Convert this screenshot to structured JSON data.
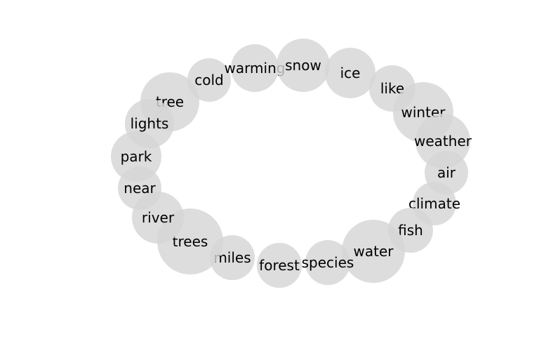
{
  "nodes": [
    {
      "id": "tree",
      "label": "tree"
    },
    {
      "id": "cold",
      "label": "cold"
    },
    {
      "id": "warming",
      "label": "warming"
    },
    {
      "id": "snow",
      "label": "snow"
    },
    {
      "id": "ice",
      "label": "ice"
    },
    {
      "id": "like",
      "label": "like"
    },
    {
      "id": "winter",
      "label": "winter"
    },
    {
      "id": "weather",
      "label": "weather"
    },
    {
      "id": "air",
      "label": "air"
    },
    {
      "id": "climate",
      "label": "climate"
    },
    {
      "id": "fish",
      "label": "fish"
    },
    {
      "id": "water",
      "label": "water"
    },
    {
      "id": "species",
      "label": "species"
    },
    {
      "id": "forest",
      "label": "forest"
    },
    {
      "id": "miles",
      "label": "miles"
    },
    {
      "id": "trees",
      "label": "trees"
    },
    {
      "id": "river",
      "label": "river"
    },
    {
      "id": "near",
      "label": "near"
    },
    {
      "id": "park",
      "label": "park"
    },
    {
      "id": "lights",
      "label": "lights"
    }
  ],
  "edges": [
    {
      "from": "tree",
      "to": "lights"
    }
  ],
  "colors": {
    "node_fill": "#d6d6d6",
    "edge": "#9a9a9a",
    "text": "#000000"
  }
}
